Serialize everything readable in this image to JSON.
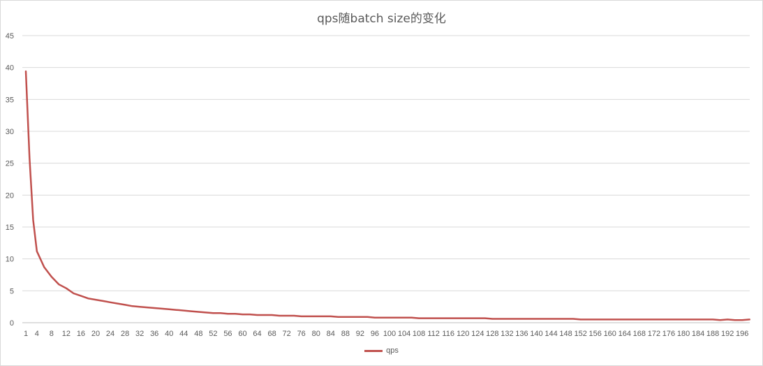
{
  "chart_data": {
    "type": "line",
    "title": "qps随batch size的变化",
    "xlabel": "",
    "ylabel": "",
    "ylim": [
      0,
      45
    ],
    "yticks": [
      0,
      5,
      10,
      15,
      20,
      25,
      30,
      35,
      40,
      45
    ],
    "x": [
      1,
      2,
      3,
      4,
      6,
      8,
      10,
      12,
      14,
      16,
      18,
      20,
      22,
      24,
      26,
      28,
      30,
      32,
      34,
      36,
      38,
      40,
      42,
      44,
      46,
      48,
      50,
      52,
      54,
      56,
      58,
      60,
      62,
      64,
      66,
      68,
      70,
      72,
      74,
      76,
      78,
      80,
      82,
      84,
      86,
      88,
      90,
      92,
      94,
      96,
      98,
      100,
      102,
      104,
      106,
      108,
      110,
      112,
      114,
      116,
      118,
      120,
      122,
      124,
      126,
      128,
      130,
      132,
      134,
      136,
      138,
      140,
      142,
      144,
      146,
      148,
      150,
      152,
      154,
      156,
      158,
      160,
      162,
      164,
      166,
      168,
      170,
      172,
      174,
      176,
      178,
      180,
      182,
      184,
      186,
      188,
      190,
      192,
      194,
      196,
      198
    ],
    "xticks": [
      "1",
      "4",
      "8",
      "12",
      "16",
      "20",
      "24",
      "28",
      "32",
      "36",
      "40",
      "44",
      "48",
      "52",
      "56",
      "60",
      "64",
      "68",
      "72",
      "76",
      "80",
      "84",
      "88",
      "92",
      "96",
      "100",
      "104",
      "108",
      "112",
      "116",
      "120",
      "124",
      "128",
      "132",
      "136",
      "140",
      "144",
      "148",
      "152",
      "156",
      "160",
      "164",
      "168",
      "172",
      "176",
      "180",
      "184",
      "188",
      "192",
      "196"
    ],
    "grid": true,
    "legend_position": "bottom",
    "series": [
      {
        "name": "qps",
        "color": "#c0504d",
        "values": [
          39.4,
          25.8,
          16.1,
          11.2,
          8.7,
          7.2,
          6.0,
          5.4,
          4.6,
          4.2,
          3.8,
          3.6,
          3.4,
          3.2,
          3.0,
          2.8,
          2.6,
          2.5,
          2.4,
          2.3,
          2.2,
          2.1,
          2.0,
          1.9,
          1.8,
          1.7,
          1.6,
          1.5,
          1.5,
          1.4,
          1.4,
          1.3,
          1.3,
          1.2,
          1.2,
          1.2,
          1.1,
          1.1,
          1.1,
          1.0,
          1.0,
          1.0,
          1.0,
          1.0,
          0.9,
          0.9,
          0.9,
          0.9,
          0.9,
          0.8,
          0.8,
          0.8,
          0.8,
          0.8,
          0.8,
          0.7,
          0.7,
          0.7,
          0.7,
          0.7,
          0.7,
          0.7,
          0.7,
          0.7,
          0.7,
          0.6,
          0.6,
          0.6,
          0.6,
          0.6,
          0.6,
          0.6,
          0.6,
          0.6,
          0.6,
          0.6,
          0.6,
          0.5,
          0.5,
          0.5,
          0.5,
          0.5,
          0.5,
          0.5,
          0.5,
          0.5,
          0.5,
          0.5,
          0.5,
          0.5,
          0.5,
          0.5,
          0.5,
          0.5,
          0.5,
          0.5,
          0.4,
          0.5,
          0.4,
          0.4,
          0.5
        ]
      }
    ]
  }
}
